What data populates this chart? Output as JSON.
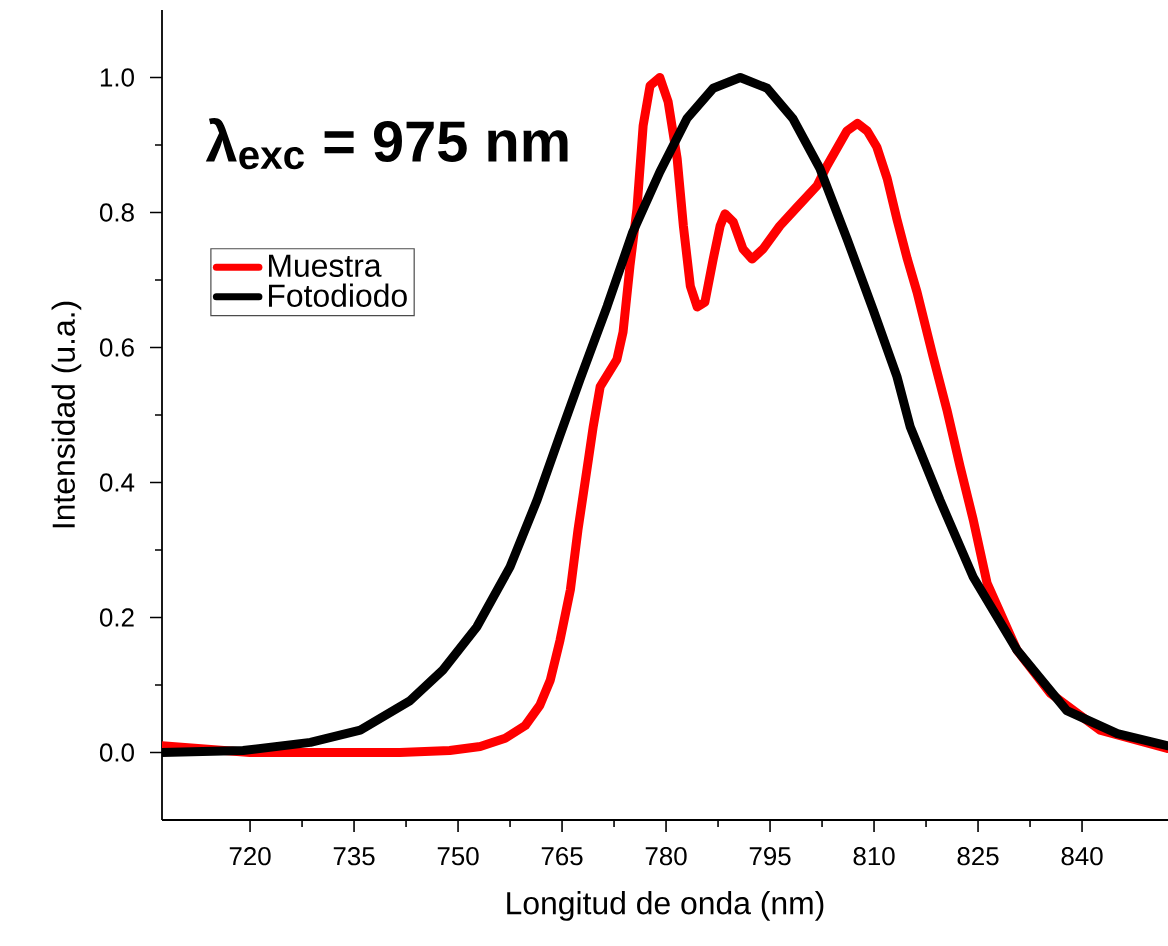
{
  "chart_data": {
    "type": "line",
    "xlabel": "Longitud de onda (nm)",
    "ylabel": "Intensidad (u.a.)",
    "annotations": [
      "λ$_{exc}$ = 975 nm"
    ],
    "xlim": [
      707.3,
      852.4
    ],
    "ylim": [
      -0.1,
      1.1
    ],
    "xticks": [
      720,
      735,
      750,
      765,
      780,
      795,
      810,
      825,
      840
    ],
    "yticks": [
      {
        "value": 0,
        "label": "0.0"
      },
      0.2,
      0.4,
      0.6,
      0.8,
      {
        "value": 1,
        "label": "1.0"
      }
    ],
    "grid": false,
    "legend": "top left",
    "marker": "none",
    "line_style": "solid",
    "series": [
      {
        "name": "Muestra",
        "color": "#ff0000",
        "x": [
          707.3,
          720,
          727.2,
          741.6,
          748.8,
          753.2,
          756.8,
          759.7,
          761.8,
          763.3,
          764.7,
          766.2,
          767.3,
          768.8,
          769.5,
          770.5,
          772.9,
          773.8,
          774.8,
          775.8,
          776.7,
          777.7,
          779.1,
          780.3,
          781.6,
          782.5,
          783.5,
          784.5,
          785.6,
          786.8,
          787.8,
          788.5,
          789.7,
          791.1,
          792.4,
          794.0,
          796.4,
          798.9,
          801.8,
          803.2,
          806.1,
          807.6,
          809.0,
          810.4,
          811.9,
          813.3,
          814.8,
          816.2,
          818.5,
          820.5,
          822.4,
          824.3,
          826.3,
          830.6,
          835.4,
          842.6,
          852.3
        ],
        "values": [
          0.01,
          0.0,
          0.0,
          0.0,
          0.003,
          0.009,
          0.021,
          0.04,
          0.07,
          0.107,
          0.166,
          0.241,
          0.33,
          0.434,
          0.483,
          0.542,
          0.582,
          0.623,
          0.721,
          0.805,
          0.929,
          0.988,
          1.0,
          0.964,
          0.88,
          0.78,
          0.691,
          0.66,
          0.667,
          0.731,
          0.78,
          0.798,
          0.786,
          0.746,
          0.731,
          0.746,
          0.78,
          0.808,
          0.84,
          0.869,
          0.921,
          0.932,
          0.921,
          0.897,
          0.85,
          0.79,
          0.731,
          0.682,
          0.587,
          0.508,
          0.424,
          0.345,
          0.251,
          0.152,
          0.088,
          0.033,
          0.006
        ]
      },
      {
        "name": "Fotodiodo",
        "color": "#000000",
        "x": [
          707.3,
          719,
          728.7,
          735.9,
          743.1,
          747.8,
          752.7,
          757.5,
          761.4,
          764.7,
          767.6,
          771.5,
          775.2,
          779.1,
          783.0,
          786.8,
          790.7,
          794.6,
          798.3,
          802.2,
          806.1,
          809.9,
          813.3,
          815.2,
          819.5,
          824.3,
          830.6,
          837.8,
          845.1,
          852.3
        ],
        "values": [
          0.0,
          0.003,
          0.015,
          0.033,
          0.077,
          0.122,
          0.186,
          0.275,
          0.374,
          0.47,
          0.553,
          0.661,
          0.771,
          0.86,
          0.939,
          0.984,
          1.0,
          0.984,
          0.939,
          0.865,
          0.761,
          0.655,
          0.557,
          0.483,
          0.374,
          0.26,
          0.152,
          0.062,
          0.028,
          0.01
        ]
      }
    ]
  }
}
